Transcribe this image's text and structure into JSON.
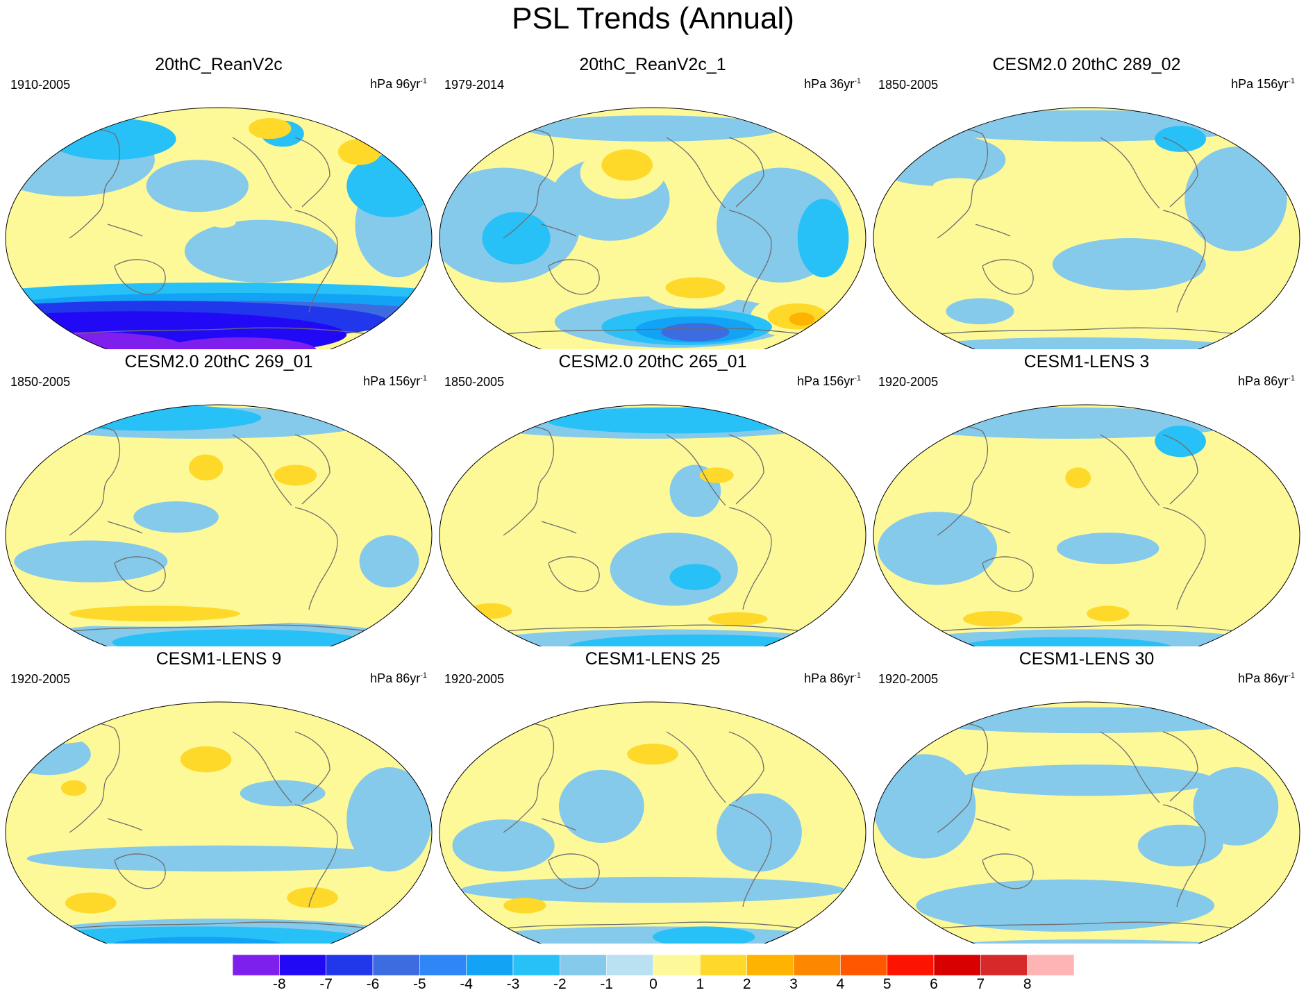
{
  "title": "PSL Trends (Annual)",
  "panels": [
    {
      "title": "20thC_ReanV2c",
      "period": "1910-2005",
      "units_prefix": "hPa 96yr",
      "units_exp": "-1",
      "blobs": [
        {
          "t": -8,
          "u": 0.2,
          "v": 0.92,
          "rx": 0.22,
          "ry": 0.06
        },
        {
          "t": -8,
          "u": 0.55,
          "v": 0.93,
          "rx": 0.18,
          "ry": 0.05
        },
        {
          "t": -7,
          "u": 0.3,
          "v": 0.87,
          "rx": 0.5,
          "ry": 0.09
        },
        {
          "t": -6,
          "u": 0.35,
          "v": 0.82,
          "rx": 0.55,
          "ry": 0.08
        },
        {
          "t": -5,
          "u": 0.5,
          "v": 0.8,
          "rx": 0.55,
          "ry": 0.06
        },
        {
          "t": -3,
          "u": 0.55,
          "v": 0.76,
          "rx": 0.55,
          "ry": 0.05
        },
        {
          "t": -2,
          "u": 0.5,
          "v": 0.72,
          "rx": 0.55,
          "ry": 0.05
        },
        {
          "t": -1,
          "u": 0.15,
          "v": 0.2,
          "rx": 0.2,
          "ry": 0.14
        },
        {
          "t": -1,
          "u": 0.45,
          "v": 0.3,
          "rx": 0.12,
          "ry": 0.1
        },
        {
          "t": -1,
          "u": 0.6,
          "v": 0.55,
          "rx": 0.18,
          "ry": 0.12
        },
        {
          "t": -1,
          "u": 0.92,
          "v": 0.45,
          "rx": 0.1,
          "ry": 0.2
        },
        {
          "t": -2,
          "u": 0.25,
          "v": 0.12,
          "rx": 0.15,
          "ry": 0.08
        },
        {
          "t": -2,
          "u": 0.9,
          "v": 0.3,
          "rx": 0.1,
          "ry": 0.12
        },
        {
          "t": -2,
          "u": 0.65,
          "v": 0.1,
          "rx": 0.05,
          "ry": 0.05
        },
        {
          "t": 1,
          "u": 0.6,
          "v": 0.1,
          "rx": 0.1,
          "ry": 0.07
        },
        {
          "t": 2,
          "u": 0.62,
          "v": 0.08,
          "rx": 0.05,
          "ry": 0.04
        },
        {
          "t": 1,
          "u": 0.82,
          "v": 0.17,
          "rx": 0.1,
          "ry": 0.08
        },
        {
          "t": 2,
          "u": 0.83,
          "v": 0.17,
          "rx": 0.05,
          "ry": 0.05
        },
        {
          "t": 1,
          "u": 0.14,
          "v": 0.66,
          "rx": 0.05,
          "ry": 0.04
        },
        {
          "t": 1,
          "u": 0.51,
          "v": 0.44,
          "rx": 0.03,
          "ry": 0.02
        }
      ]
    },
    {
      "title": "20thC_ReanV2c_1",
      "period": "1979-2014",
      "units_prefix": "hPa 36yr",
      "units_exp": "-1",
      "blobs": [
        {
          "t": -1,
          "u": 0.15,
          "v": 0.45,
          "rx": 0.18,
          "ry": 0.22
        },
        {
          "t": -1,
          "u": 0.4,
          "v": 0.35,
          "rx": 0.14,
          "ry": 0.16
        },
        {
          "t": -1,
          "u": 0.8,
          "v": 0.45,
          "rx": 0.15,
          "ry": 0.22
        },
        {
          "t": -1,
          "u": 0.5,
          "v": 0.08,
          "rx": 0.3,
          "ry": 0.05
        },
        {
          "t": -2,
          "u": 0.9,
          "v": 0.5,
          "rx": 0.06,
          "ry": 0.15
        },
        {
          "t": -2,
          "u": 0.18,
          "v": 0.5,
          "rx": 0.08,
          "ry": 0.1
        },
        {
          "t": -1,
          "u": 0.55,
          "v": 0.82,
          "rx": 0.28,
          "ry": 0.1
        },
        {
          "t": -2,
          "u": 0.58,
          "v": 0.84,
          "rx": 0.2,
          "ry": 0.07
        },
        {
          "t": -3,
          "u": 0.6,
          "v": 0.85,
          "rx": 0.14,
          "ry": 0.05
        },
        {
          "t": -5,
          "u": 0.6,
          "v": 0.86,
          "rx": 0.08,
          "ry": 0.035
        },
        {
          "t": 1,
          "u": 0.43,
          "v": 0.25,
          "rx": 0.1,
          "ry": 0.1
        },
        {
          "t": 2,
          "u": 0.44,
          "v": 0.22,
          "rx": 0.06,
          "ry": 0.06
        },
        {
          "t": 1,
          "u": 0.6,
          "v": 0.69,
          "rx": 0.12,
          "ry": 0.08
        },
        {
          "t": 2,
          "u": 0.6,
          "v": 0.69,
          "rx": 0.07,
          "ry": 0.04
        },
        {
          "t": 1,
          "u": 0.83,
          "v": 0.8,
          "rx": 0.1,
          "ry": 0.08
        },
        {
          "t": 2,
          "u": 0.84,
          "v": 0.8,
          "rx": 0.07,
          "ry": 0.05
        },
        {
          "t": 3,
          "u": 0.85,
          "v": 0.81,
          "rx": 0.03,
          "ry": 0.025
        },
        {
          "t": 1,
          "u": 0.14,
          "v": 0.1,
          "rx": 0.06,
          "ry": 0.04
        }
      ]
    },
    {
      "title": "CESM2.0 20thC 289_02",
      "period": "1850-2005",
      "units_prefix": "hPa 156yr",
      "units_exp": "-1",
      "blobs": [
        {
          "t": -1,
          "u": 0.5,
          "v": 0.07,
          "rx": 0.4,
          "ry": 0.06
        },
        {
          "t": -1,
          "u": 0.15,
          "v": 0.2,
          "rx": 0.16,
          "ry": 0.1
        },
        {
          "t": -1,
          "u": 0.85,
          "v": 0.35,
          "rx": 0.12,
          "ry": 0.2
        },
        {
          "t": -1,
          "u": 0.6,
          "v": 0.6,
          "rx": 0.18,
          "ry": 0.1
        },
        {
          "t": -1,
          "u": 0.48,
          "v": 0.93,
          "rx": 0.4,
          "ry": 0.05
        },
        {
          "t": -1,
          "u": 0.25,
          "v": 0.78,
          "rx": 0.08,
          "ry": 0.05
        },
        {
          "t": -2,
          "u": 0.72,
          "v": 0.12,
          "rx": 0.06,
          "ry": 0.05
        },
        {
          "t": 1,
          "u": 0.2,
          "v": 0.3,
          "rx": 0.06,
          "ry": 0.03
        }
      ]
    },
    {
      "title": "CESM2.0 20thC 269_01",
      "period": "1850-2005",
      "units_prefix": "hPa 156yr",
      "units_exp": "-1",
      "blobs": [
        {
          "t": -1,
          "u": 0.45,
          "v": 0.07,
          "rx": 0.4,
          "ry": 0.06
        },
        {
          "t": -2,
          "u": 0.35,
          "v": 0.05,
          "rx": 0.25,
          "ry": 0.05
        },
        {
          "t": -1,
          "u": 0.4,
          "v": 0.43,
          "rx": 0.1,
          "ry": 0.06
        },
        {
          "t": -1,
          "u": 0.9,
          "v": 0.6,
          "rx": 0.07,
          "ry": 0.1
        },
        {
          "t": -1,
          "u": 0.2,
          "v": 0.6,
          "rx": 0.18,
          "ry": 0.08
        },
        {
          "t": -1,
          "u": 0.5,
          "v": 0.9,
          "rx": 0.45,
          "ry": 0.07
        },
        {
          "t": -2,
          "u": 0.55,
          "v": 0.91,
          "rx": 0.3,
          "ry": 0.05
        },
        {
          "t": 1,
          "u": 0.35,
          "v": 0.81,
          "rx": 0.4,
          "ry": 0.04
        },
        {
          "t": 2,
          "u": 0.35,
          "v": 0.8,
          "rx": 0.2,
          "ry": 0.03
        },
        {
          "t": 2,
          "u": 0.47,
          "v": 0.24,
          "rx": 0.04,
          "ry": 0.05
        },
        {
          "t": 2,
          "u": 0.68,
          "v": 0.27,
          "rx": 0.05,
          "ry": 0.04
        }
      ]
    },
    {
      "title": "CESM2.0 20thC 265_01",
      "period": "1850-2005",
      "units_prefix": "hPa 156yr",
      "units_exp": "-1",
      "blobs": [
        {
          "t": -1,
          "u": 0.5,
          "v": 0.07,
          "rx": 0.42,
          "ry": 0.06
        },
        {
          "t": -2,
          "u": 0.55,
          "v": 0.06,
          "rx": 0.3,
          "ry": 0.05
        },
        {
          "t": -1,
          "u": 0.55,
          "v": 0.63,
          "rx": 0.15,
          "ry": 0.14
        },
        {
          "t": -2,
          "u": 0.6,
          "v": 0.66,
          "rx": 0.06,
          "ry": 0.05
        },
        {
          "t": -1,
          "u": 0.52,
          "v": 0.92,
          "rx": 0.45,
          "ry": 0.06
        },
        {
          "t": -2,
          "u": 0.6,
          "v": 0.93,
          "rx": 0.3,
          "ry": 0.05
        },
        {
          "t": -1,
          "u": 0.6,
          "v": 0.33,
          "rx": 0.06,
          "ry": 0.1
        },
        {
          "t": 1,
          "u": 0.12,
          "v": 0.8,
          "rx": 0.08,
          "ry": 0.05
        },
        {
          "t": 2,
          "u": 0.12,
          "v": 0.79,
          "rx": 0.05,
          "ry": 0.03
        },
        {
          "t": 1,
          "u": 0.68,
          "v": 0.82,
          "rx": 0.12,
          "ry": 0.04
        },
        {
          "t": 2,
          "u": 0.7,
          "v": 0.82,
          "rx": 0.07,
          "ry": 0.025
        },
        {
          "t": 2,
          "u": 0.65,
          "v": 0.27,
          "rx": 0.04,
          "ry": 0.03
        }
      ]
    },
    {
      "title": "CESM1-LENS 3",
      "period": "1920-2005",
      "units_prefix": "hPa 86yr",
      "units_exp": "-1",
      "blobs": [
        {
          "t": -1,
          "u": 0.45,
          "v": 0.07,
          "rx": 0.4,
          "ry": 0.06
        },
        {
          "t": -2,
          "u": 0.72,
          "v": 0.14,
          "rx": 0.06,
          "ry": 0.06
        },
        {
          "t": -1,
          "u": 0.15,
          "v": 0.55,
          "rx": 0.14,
          "ry": 0.14
        },
        {
          "t": -1,
          "u": 0.55,
          "v": 0.55,
          "rx": 0.12,
          "ry": 0.06
        },
        {
          "t": -1,
          "u": 0.5,
          "v": 0.92,
          "rx": 0.45,
          "ry": 0.06
        },
        {
          "t": -2,
          "u": 0.45,
          "v": 0.93,
          "rx": 0.25,
          "ry": 0.04
        },
        {
          "t": 1,
          "u": 0.28,
          "v": 0.82,
          "rx": 0.12,
          "ry": 0.05
        },
        {
          "t": 2,
          "u": 0.28,
          "v": 0.82,
          "rx": 0.07,
          "ry": 0.03
        },
        {
          "t": 1,
          "u": 0.55,
          "v": 0.8,
          "rx": 0.1,
          "ry": 0.06
        },
        {
          "t": 2,
          "u": 0.55,
          "v": 0.8,
          "rx": 0.05,
          "ry": 0.03
        },
        {
          "t": 2,
          "u": 0.48,
          "v": 0.28,
          "rx": 0.03,
          "ry": 0.04
        }
      ]
    },
    {
      "title": "CESM1-LENS 9",
      "period": "1920-2005",
      "units_prefix": "hPa 86yr",
      "units_exp": "-1",
      "blobs": [
        {
          "t": -1,
          "u": 0.1,
          "v": 0.2,
          "rx": 0.1,
          "ry": 0.08
        },
        {
          "t": -1,
          "u": 0.9,
          "v": 0.45,
          "rx": 0.1,
          "ry": 0.2
        },
        {
          "t": -1,
          "u": 0.5,
          "v": 0.6,
          "rx": 0.45,
          "ry": 0.05
        },
        {
          "t": -1,
          "u": 0.65,
          "v": 0.35,
          "rx": 0.1,
          "ry": 0.05
        },
        {
          "t": -1,
          "u": 0.5,
          "v": 0.9,
          "rx": 0.45,
          "ry": 0.07
        },
        {
          "t": -2,
          "u": 0.45,
          "v": 0.91,
          "rx": 0.4,
          "ry": 0.05
        },
        {
          "t": -3,
          "u": 0.45,
          "v": 0.93,
          "rx": 0.2,
          "ry": 0.03
        },
        {
          "t": 1,
          "u": 0.12,
          "v": 0.12,
          "rx": 0.1,
          "ry": 0.04
        },
        {
          "t": 2,
          "u": 0.13,
          "v": 0.11,
          "rx": 0.05,
          "ry": 0.025
        },
        {
          "t": 2,
          "u": 0.47,
          "v": 0.22,
          "rx": 0.06,
          "ry": 0.05
        },
        {
          "t": 2,
          "u": 0.2,
          "v": 0.77,
          "rx": 0.06,
          "ry": 0.04
        },
        {
          "t": 2,
          "u": 0.72,
          "v": 0.75,
          "rx": 0.06,
          "ry": 0.04
        },
        {
          "t": 2,
          "u": 0.16,
          "v": 0.33,
          "rx": 0.03,
          "ry": 0.03
        }
      ]
    },
    {
      "title": "CESM1-LENS 25",
      "period": "1920-2005",
      "units_prefix": "hPa 86yr",
      "units_exp": "-1",
      "blobs": [
        {
          "t": -1,
          "u": 0.38,
          "v": 0.4,
          "rx": 0.1,
          "ry": 0.14
        },
        {
          "t": -1,
          "u": 0.15,
          "v": 0.55,
          "rx": 0.12,
          "ry": 0.1
        },
        {
          "t": -1,
          "u": 0.75,
          "v": 0.5,
          "rx": 0.1,
          "ry": 0.15
        },
        {
          "t": -1,
          "u": 0.5,
          "v": 0.72,
          "rx": 0.45,
          "ry": 0.05
        },
        {
          "t": -1,
          "u": 0.5,
          "v": 0.92,
          "rx": 0.45,
          "ry": 0.06
        },
        {
          "t": -2,
          "u": 0.62,
          "v": 0.9,
          "rx": 0.12,
          "ry": 0.04
        },
        {
          "t": 1,
          "u": 0.5,
          "v": 0.08,
          "rx": 0.35,
          "ry": 0.05
        },
        {
          "t": 1,
          "u": 0.15,
          "v": 0.1,
          "rx": 0.1,
          "ry": 0.05
        },
        {
          "t": 2,
          "u": 0.5,
          "v": 0.2,
          "rx": 0.06,
          "ry": 0.04
        },
        {
          "t": 2,
          "u": 0.2,
          "v": 0.78,
          "rx": 0.05,
          "ry": 0.03
        },
        {
          "t": 1,
          "u": 0.3,
          "v": 0.82,
          "rx": 0.1,
          "ry": 0.03
        }
      ]
    },
    {
      "title": "CESM1-LENS 30",
      "period": "1920-2005",
      "units_prefix": "hPa 86yr",
      "units_exp": "-1",
      "blobs": [
        {
          "t": -1,
          "u": 0.5,
          "v": 0.07,
          "rx": 0.4,
          "ry": 0.05
        },
        {
          "t": -1,
          "u": 0.12,
          "v": 0.4,
          "rx": 0.12,
          "ry": 0.2
        },
        {
          "t": -1,
          "u": 0.5,
          "v": 0.3,
          "rx": 0.3,
          "ry": 0.06
        },
        {
          "t": -1,
          "u": 0.85,
          "v": 0.4,
          "rx": 0.1,
          "ry": 0.15
        },
        {
          "t": -1,
          "u": 0.45,
          "v": 0.78,
          "rx": 0.35,
          "ry": 0.1
        },
        {
          "t": -1,
          "u": 0.5,
          "v": 0.95,
          "rx": 0.4,
          "ry": 0.04
        },
        {
          "t": -1,
          "u": 0.72,
          "v": 0.55,
          "rx": 0.1,
          "ry": 0.08
        }
      ]
    }
  ],
  "colorbar": {
    "colors": [
      "#7e1fee",
      "#2209f6",
      "#2137ec",
      "#3d6ce1",
      "#2f86f7",
      "#12a3f6",
      "#27c0f7",
      "#85c9eb",
      "#b9e1f1",
      "#fef998",
      "#fed92a",
      "#feb300",
      "#fe8700",
      "#fe5700",
      "#fe1300",
      "#d80000",
      "#d8292a",
      "#ffb4b4"
    ],
    "labels": [
      "-8",
      "-7",
      "-6",
      "-5",
      "-4",
      "-3",
      "-2",
      "-1",
      "0",
      "1",
      "2",
      "3",
      "4",
      "5",
      "6",
      "7",
      "8"
    ]
  }
}
